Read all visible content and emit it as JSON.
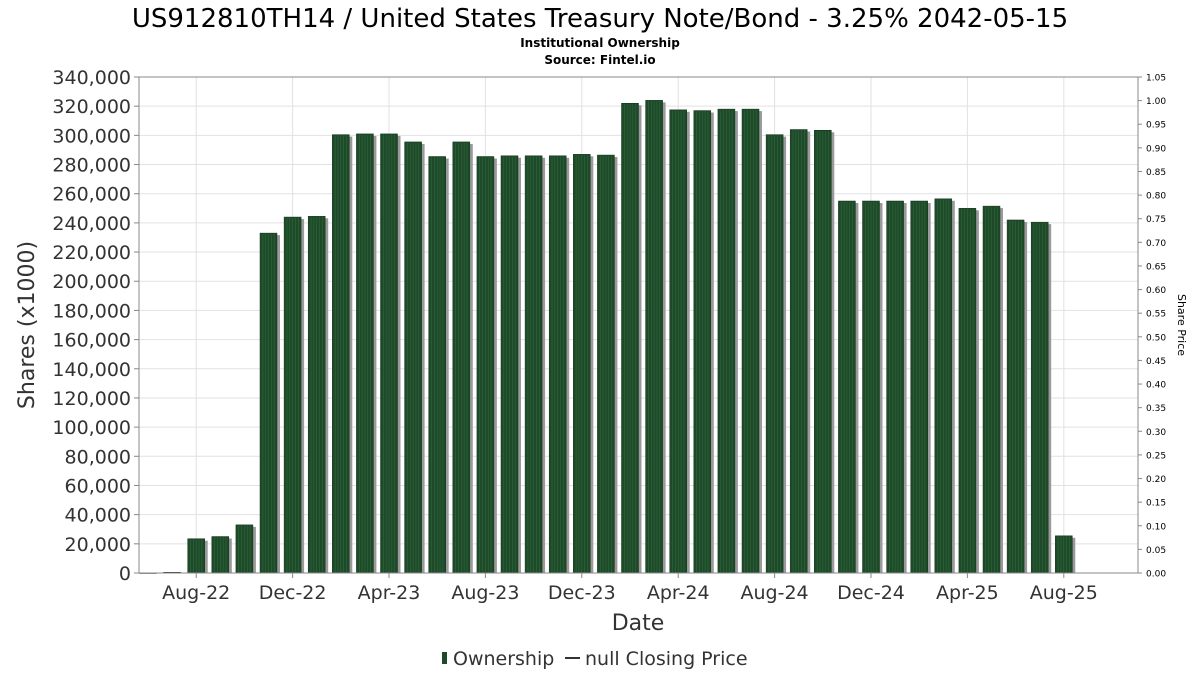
{
  "chart_data": {
    "type": "bar",
    "title": "US912810TH14 / United States Treasury Note/Bond - 3.25% 2042-05-15",
    "subtitle": "Institutional Ownership",
    "source": "Source: Fintel.io",
    "xlabel": "Date",
    "ylabel": "Shares (x1000)",
    "y2label": "Share Price",
    "ylim": [
      0,
      340000
    ],
    "y2lim": [
      0,
      1.05
    ],
    "yticks": [
      "0",
      "20,000",
      "40,000",
      "60,000",
      "80,000",
      "100,000",
      "120,000",
      "140,000",
      "160,000",
      "180,000",
      "200,000",
      "220,000",
      "240,000",
      "260,000",
      "280,000",
      "300,000",
      "320,000",
      "340,000"
    ],
    "y2ticks": [
      "0.00",
      "0.05",
      "0.10",
      "0.15",
      "0.20",
      "0.25",
      "0.30",
      "0.35",
      "0.40",
      "0.45",
      "0.50",
      "0.55",
      "0.60",
      "0.65",
      "0.70",
      "0.75",
      "0.80",
      "0.85",
      "0.90",
      "0.95",
      "1.00",
      "1.05"
    ],
    "xticks": [
      {
        "label": "Aug-22",
        "index": 2
      },
      {
        "label": "Dec-22",
        "index": 6
      },
      {
        "label": "Apr-23",
        "index": 10
      },
      {
        "label": "Aug-23",
        "index": 14
      },
      {
        "label": "Dec-23",
        "index": 18
      },
      {
        "label": "Apr-24",
        "index": 22
      },
      {
        "label": "Aug-24",
        "index": 26
      },
      {
        "label": "Dec-24",
        "index": 30
      },
      {
        "label": "Apr-25",
        "index": 34
      },
      {
        "label": "Aug-25",
        "index": 38
      }
    ],
    "series": [
      {
        "name": "Ownership",
        "color": "#1f4a2a",
        "values": [
          0,
          500,
          23500,
          25000,
          33000,
          233000,
          244000,
          244500,
          300500,
          301000,
          301000,
          295500,
          285500,
          295500,
          285500,
          286000,
          286000,
          286000,
          287000,
          286500,
          322000,
          324000,
          317500,
          317000,
          318000,
          318000,
          300500,
          304000,
          303500,
          255000,
          255000,
          255000,
          255000,
          256500,
          250000,
          251500,
          242000,
          240500,
          25500
        ]
      }
    ],
    "legend": {
      "position": "bottom",
      "items": [
        {
          "label": "Ownership",
          "marker": "bar",
          "color": "#1f4a2a"
        },
        {
          "label": "null Closing Price",
          "marker": "line",
          "color": "#333333"
        }
      ]
    },
    "grid": true
  }
}
